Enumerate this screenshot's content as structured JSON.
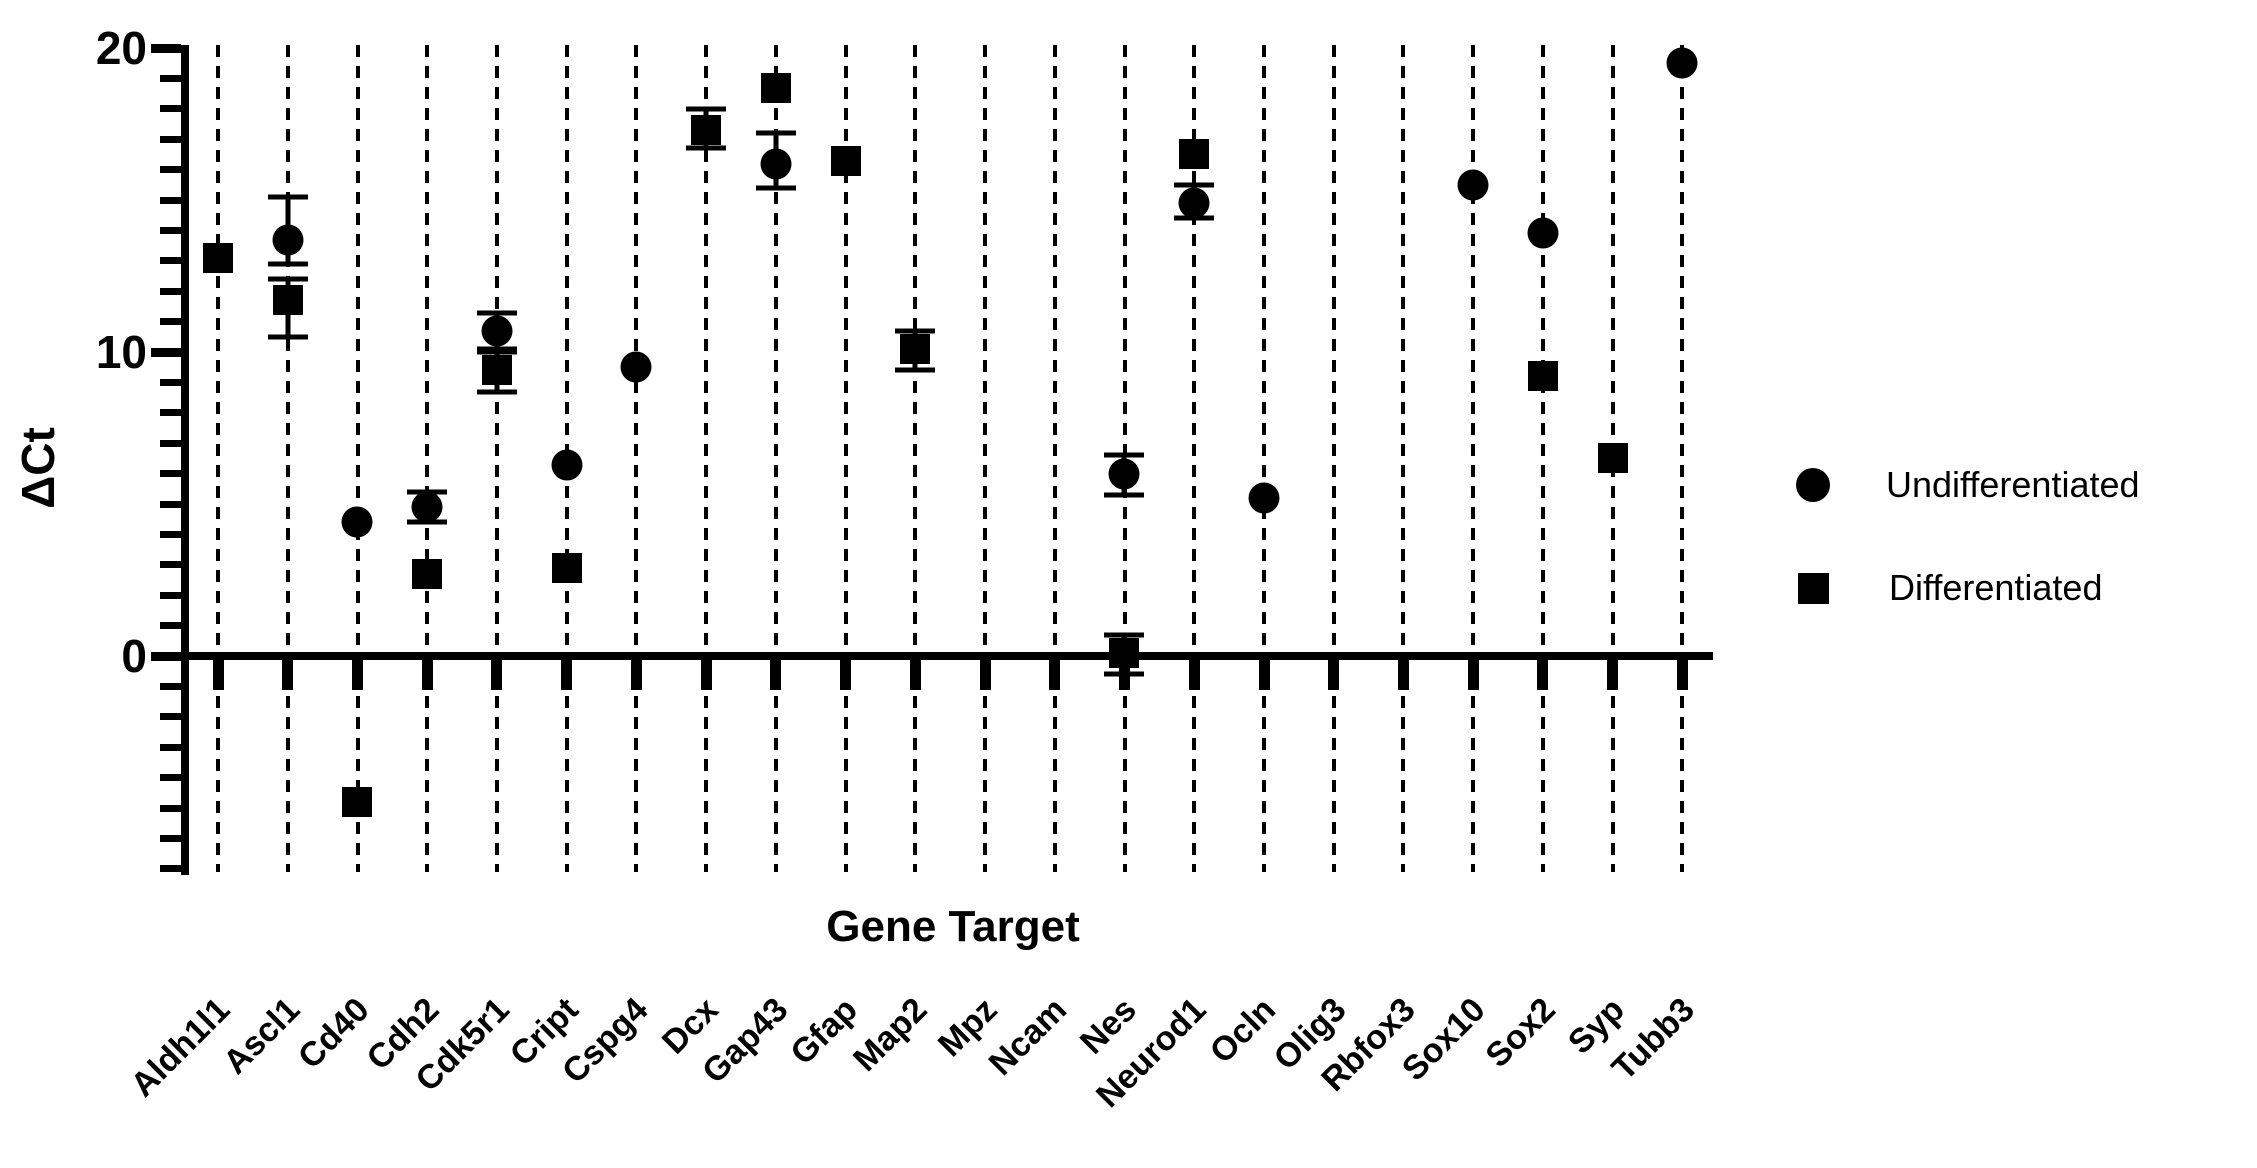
{
  "chart_data": {
    "type": "scatter",
    "title": "",
    "xlabel": "Gene Target",
    "ylabel": "ΔCt",
    "ylim": [
      -7.3,
      20
    ],
    "y_ticks": [
      0,
      10,
      20
    ],
    "y_minor_tick_step": 1,
    "grid": "vertical-dashed",
    "legend_position": "right",
    "marker_color": "#000000",
    "categories": [
      "Aldh1l1",
      "Ascl1",
      "Cd40",
      "Cdh2",
      "Cdk5r1",
      "Cript",
      "Cspg4",
      "Dcx",
      "Gap43",
      "Gfap",
      "Map2",
      "Mpz",
      "Ncam",
      "Nes",
      "Neurod1",
      "Ocln",
      "Olig3",
      "Rbfox3",
      "Sox10",
      "Sox2",
      "Syp",
      "Tubb3"
    ],
    "series": [
      {
        "name": "Undifferentiated",
        "marker": "circle",
        "points": [
          {
            "gene": "Ascl1",
            "y": 13.7,
            "lo": 12.9,
            "hi": 15.1
          },
          {
            "gene": "Cd40",
            "y": 4.4
          },
          {
            "gene": "Cdh2",
            "y": 4.9,
            "lo": 4.4,
            "hi": 5.4
          },
          {
            "gene": "Cdk5r1",
            "y": 10.7,
            "lo": 10.0,
            "hi": 11.3
          },
          {
            "gene": "Cript",
            "y": 6.3
          },
          {
            "gene": "Cspg4",
            "y": 9.5
          },
          {
            "gene": "Gap43",
            "y": 16.2,
            "lo": 15.4,
            "hi": 17.2
          },
          {
            "gene": "Nes",
            "y": 6.0,
            "lo": 5.3,
            "hi": 6.6
          },
          {
            "gene": "Neurod1",
            "y": 14.9,
            "lo": 14.4,
            "hi": 15.5
          },
          {
            "gene": "Ocln",
            "y": 5.2
          },
          {
            "gene": "Sox10",
            "y": 15.5
          },
          {
            "gene": "Sox2",
            "y": 13.9
          },
          {
            "gene": "Tubb3",
            "y": 19.5
          }
        ]
      },
      {
        "name": "Differentiated",
        "marker": "square",
        "points": [
          {
            "gene": "Aldh1l1",
            "y": 13.1
          },
          {
            "gene": "Ascl1",
            "y": 11.7,
            "lo": 10.5,
            "hi": 12.4
          },
          {
            "gene": "Cd40",
            "y": -4.8
          },
          {
            "gene": "Cdh2",
            "y": 2.7
          },
          {
            "gene": "Cdk5r1",
            "y": 9.4,
            "lo": 8.7,
            "hi": 10.1
          },
          {
            "gene": "Cript",
            "y": 2.9
          },
          {
            "gene": "Dcx",
            "y": 17.3,
            "lo": 16.7,
            "hi": 18.0
          },
          {
            "gene": "Gap43",
            "y": 18.7
          },
          {
            "gene": "Gfap",
            "y": 16.3
          },
          {
            "gene": "Map2",
            "y": 10.1,
            "lo": 9.4,
            "hi": 10.7
          },
          {
            "gene": "Nes",
            "y": 0.1,
            "lo": -0.6,
            "hi": 0.7
          },
          {
            "gene": "Neurod1",
            "y": 16.5
          },
          {
            "gene": "Sox2",
            "y": 9.2
          },
          {
            "gene": "Syp",
            "y": 6.5
          }
        ]
      }
    ],
    "legend": [
      {
        "label": "Undifferentiated",
        "marker": "circle"
      },
      {
        "label": "Differentiated",
        "marker": "square"
      }
    ]
  }
}
